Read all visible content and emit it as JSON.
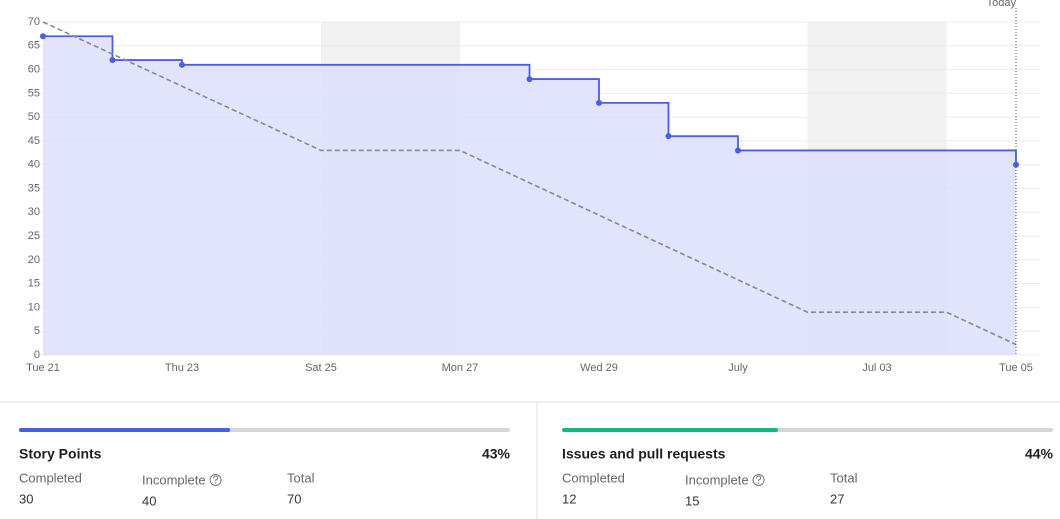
{
  "chart_data": {
    "type": "step-line",
    "categories": [
      "Tue 21",
      null,
      "Thu 23",
      null,
      "Sat 25",
      null,
      "Mon 27",
      null,
      "Wed 29",
      null,
      "July",
      null,
      "Jul 03",
      null,
      "Tue 05"
    ],
    "series": [
      {
        "color": "#4a5ee8",
        "fill": "#dcdffb",
        "values": [
          67,
          62,
          61,
          61,
          61,
          61,
          61,
          58,
          53,
          46,
          43,
          43,
          43,
          43,
          40
        ]
      },
      {
        "color": "#8a8a8a",
        "dashed": true,
        "values": [
          70,
          63.25,
          56.5,
          49.75,
          43,
          43,
          43,
          36.2,
          29.4,
          22.6,
          15.8,
          9,
          9,
          9,
          2.2
        ]
      }
    ],
    "ylim": [
      0,
      70
    ],
    "yticks": [
      0,
      5,
      10,
      15,
      20,
      25,
      30,
      35,
      40,
      45,
      50,
      55,
      60,
      65,
      70
    ],
    "grid": true,
    "shaded": [
      [
        4,
        6
      ],
      [
        11,
        13
      ]
    ],
    "today": {
      "label": "Today",
      "index": 14
    }
  },
  "summary": [
    {
      "title": "Story Points",
      "progress": 43,
      "progress_label": "43%",
      "color": "#4360e0",
      "stats": [
        {
          "label": "Completed",
          "value": "30"
        },
        {
          "label": "Incomplete",
          "value": "40"
        },
        {
          "label": "Total",
          "value": "70"
        }
      ]
    },
    {
      "title": "Issues and pull requests",
      "progress": 44,
      "progress_label": "44%",
      "color": "#10b981",
      "stats": [
        {
          "label": "Completed",
          "value": "12"
        },
        {
          "label": "Incomplete",
          "value": "15"
        },
        {
          "label": "Total",
          "value": "27"
        }
      ]
    }
  ]
}
